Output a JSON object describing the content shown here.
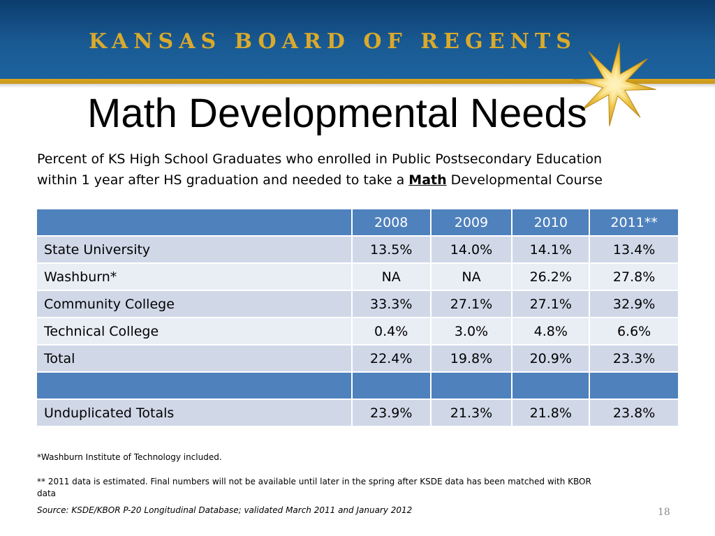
{
  "header": {
    "org_name": "KANSAS BOARD OF REGENTS",
    "logo": "gold-star-icon",
    "banner_color": "#1a5a93",
    "stripe_color": "#d8a520"
  },
  "title": "Math Developmental Needs",
  "subtitle": {
    "line1": "Percent of KS High School Graduates who enrolled in Public Postsecondary Education",
    "line2_before": "within 1 year after HS graduation and needed to take a ",
    "line2_emph": "Math",
    "line2_after": " Developmental Course"
  },
  "table": {
    "header_color": "#4f81bd",
    "columns": [
      "",
      "2008",
      "2009",
      "2010",
      "2011**"
    ],
    "rows": [
      [
        "State University",
        "13.5%",
        "14.0%",
        "14.1%",
        "13.4%"
      ],
      [
        "Washburn*",
        "NA",
        "NA",
        "26.2%",
        "27.8%"
      ],
      [
        "Community College",
        "33.3%",
        "27.1%",
        "27.1%",
        "32.9%"
      ],
      [
        "Technical College",
        "0.4%",
        "3.0%",
        "4.8%",
        "6.6%"
      ],
      [
        "Total",
        "22.4%",
        "19.8%",
        "20.9%",
        "23.3%"
      ],
      [
        "",
        "",
        "",
        "",
        ""
      ],
      [
        "Unduplicated Totals",
        "23.9%",
        "21.3%",
        "21.8%",
        "23.8%"
      ]
    ]
  },
  "notes": {
    "washburn": "*Washburn Institute of Technology included.",
    "estimate": "** 2011 data is estimated. Final numbers will not be available until later in the spring after KSDE data has been matched with KBOR data",
    "source": "Source: KSDE/KBOR P-20 Longitudinal Database; validated March 2011 and January 2012"
  },
  "page_number": "18"
}
